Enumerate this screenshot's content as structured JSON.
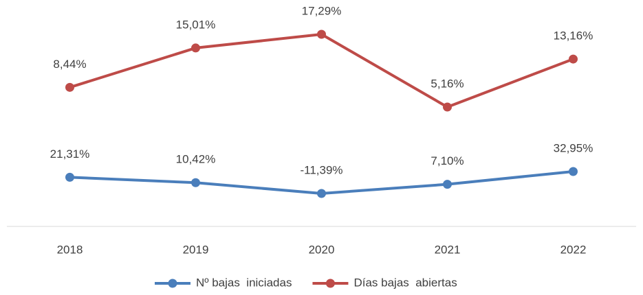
{
  "chart_data": {
    "type": "line",
    "categories": [
      "2018",
      "2019",
      "2020",
      "2021",
      "2022"
    ],
    "series": [
      {
        "name": "Nº bajas  iniciadas",
        "color": "#4a7ebb",
        "values": [
          21.31,
          10.42,
          -11.39,
          7.1,
          32.95
        ],
        "value_labels": [
          "21,31%",
          "10,42%",
          "-11,39%",
          "7,10%",
          "32,95%"
        ]
      },
      {
        "name": "Días bajas  abiertas",
        "color": "#be4b48",
        "values": [
          8.44,
          15.01,
          17.29,
          5.16,
          13.16
        ],
        "value_labels": [
          "8,44%",
          "15,01%",
          "17,29%",
          "5,16%",
          "13,16%"
        ]
      }
    ],
    "legend": "bottom"
  }
}
